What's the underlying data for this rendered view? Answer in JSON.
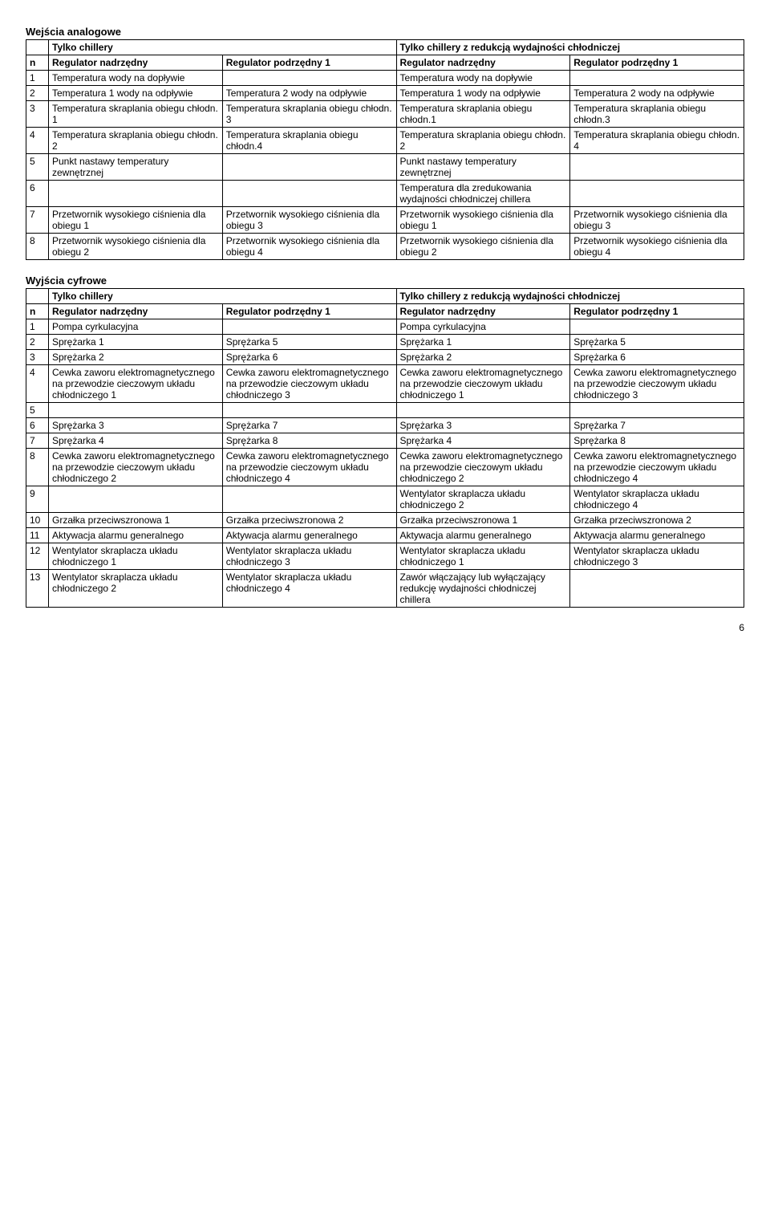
{
  "analog": {
    "title": "Wejścia analogowe",
    "group_a": "Tylko chillery",
    "group_b": "Tylko chillery z redukcją wydajności chłodniczej",
    "h_n": "n",
    "h_c1": "Regulator nadrzędny",
    "h_c2": "Regulator podrzędny 1",
    "h_c3": "Regulator nadrzędny",
    "h_c4": "Regulator podrzędny 1",
    "rows": [
      {
        "n": "1",
        "c1": "Temperatura wody na dopływie",
        "c2": "",
        "c3": "Temperatura wody na dopływie",
        "c4": ""
      },
      {
        "n": "2",
        "c1": "Temperatura 1 wody na odpływie",
        "c2": "Temperatura 2 wody na odpływie",
        "c3": "Temperatura 1 wody na  odpływie",
        "c4": "Temperatura 2 wody na odpływie"
      },
      {
        "n": "3",
        "c1": "Temperatura skraplania obiegu chłodn. 1",
        "c2": "Temperatura skraplania obiegu chłodn. 3",
        "c3": "Temperatura skraplania obiegu chłodn.1",
        "c4": "Temperatura skraplania obiegu chłodn.3"
      },
      {
        "n": "4",
        "c1": "Temperatura skraplania obiegu chłodn. 2",
        "c2": "Temperatura skraplania obiegu chłodn.4",
        "c3": "Temperatura skraplania obiegu chłodn. 2",
        "c4": "Temperatura skraplania obiegu chłodn. 4"
      },
      {
        "n": "5",
        "c1": "Punkt nastawy temperatury zewnętrznej",
        "c2": "",
        "c3": "Punkt nastawy temperatury zewnętrznej",
        "c4": ""
      },
      {
        "n": "6",
        "c1": "",
        "c2": "",
        "c3": "Temperatura dla zredukowania wydajności chłodniczej chillera",
        "c4": ""
      },
      {
        "n": "7",
        "c1": "Przetwornik wysokiego ciśnienia dla obiegu 1",
        "c2": "Przetwornik wysokiego ciśnienia dla obiegu 3",
        "c3": "Przetwornik wysokiego ciśnienia dla obiegu 1",
        "c4": "Przetwornik wysokiego ciśnienia dla obiegu 3"
      },
      {
        "n": "8",
        "c1": "Przetwornik wysokiego ciśnienia dla obiegu 2",
        "c2": "Przetwornik wysokiego ciśnienia dla obiegu 4",
        "c3": "Przetwornik wysokiego ciśnienia dla obiegu 2",
        "c4": "Przetwornik wysokiego ciśnienia dla obiegu 4"
      }
    ]
  },
  "digital": {
    "title": "Wyjścia cyfrowe",
    "group_a": "Tylko chillery",
    "group_b": "Tylko chillery z redukcją wydajności chłodniczej",
    "h_n": "n",
    "h_c1": "Regulator nadrzędny",
    "h_c2": "Regulator podrzędny 1",
    "h_c3": "Regulator nadrzędny",
    "h_c4": "Regulator podrzędny 1",
    "rows": [
      {
        "n": "1",
        "c1": "Pompa cyrkulacyjna",
        "c2": "",
        "c3": "Pompa cyrkulacyjna",
        "c4": ""
      },
      {
        "n": "2",
        "c1": "Sprężarka 1",
        "c2": "Sprężarka 5",
        "c3": "Sprężarka 1",
        "c4": "Sprężarka 5"
      },
      {
        "n": "3",
        "c1": "Sprężarka 2",
        "c2": "Sprężarka 6",
        "c3": "Sprężarka 2",
        "c4": "Sprężarka 6"
      },
      {
        "n": "4",
        "c1": "Cewka zaworu elektromagnetycznego na przewodzie cieczowym układu chłodniczego 1",
        "c2": "Cewka zaworu elektromagnetycznego na przewodzie cieczowym układu chłodniczego 3",
        "c3": "Cewka zaworu elektromagnetycznego na przewodzie cieczowym układu chłodniczego 1",
        "c4": "Cewka zaworu elektromagnetycznego na przewodzie cieczowym układu chłodniczego 3"
      },
      {
        "n": "5",
        "c1": "",
        "c2": "",
        "c3": "",
        "c4": ""
      },
      {
        "n": "6",
        "c1": "Sprężarka 3",
        "c2": "Sprężarka 7",
        "c3": "Sprężarka 3",
        "c4": "Sprężarka 7"
      },
      {
        "n": "7",
        "c1": "Sprężarka 4",
        "c2": "Sprężarka 8",
        "c3": "Sprężarka 4",
        "c4": "Sprężarka 8"
      },
      {
        "n": "8",
        "c1": "Cewka zaworu elektromagnetycznego na przewodzie cieczowym układu chłodniczego 2",
        "c2": " Cewka zaworu elektromagnetycznego na przewodzie cieczowym układu chłodniczego 4",
        "c3": "Cewka zaworu elektromagnetycznego na przewodzie cieczowym układu chłodniczego 2",
        "c4": "Cewka zaworu elektromagnetycznego na przewodzie cieczowym układu chłodniczego 4"
      },
      {
        "n": "9",
        "c1": "",
        "c2": "",
        "c3": "Wentylator skraplacza układu chłodniczego 2",
        "c4": "Wentylator skraplacza układu chłodniczego 4"
      },
      {
        "n": "10",
        "c1": "Grzałka przeciwszronowa 1",
        "c2": "Grzałka przeciwszronowa 2",
        "c3": "Grzałka przeciwszronowa 1",
        "c4": "Grzałka przeciwszronowa 2"
      },
      {
        "n": "11",
        "c1": "Aktywacja alarmu generalnego",
        "c2": "Aktywacja alarmu generalnego",
        "c3": "Aktywacja alarmu generalnego",
        "c4": "Aktywacja alarmu generalnego"
      },
      {
        "n": "12",
        "c1": "Wentylator skraplacza układu chłodniczego 1",
        "c2": "Wentylator skraplacza układu chłodniczego 3",
        "c3": "Wentylator skraplacza układu chłodniczego 1",
        "c4": "Wentylator skraplacza układu chłodniczego 3"
      },
      {
        "n": "13",
        "c1": "Wentylator skraplacza układu chłodniczego 2",
        "c2": "Wentylator skraplacza układu chłodniczego 4",
        "c3": "Zawór włączający lub wyłączający redukcję wydajności chłodniczej chillera",
        "c4": ""
      }
    ]
  },
  "page_number": "6"
}
